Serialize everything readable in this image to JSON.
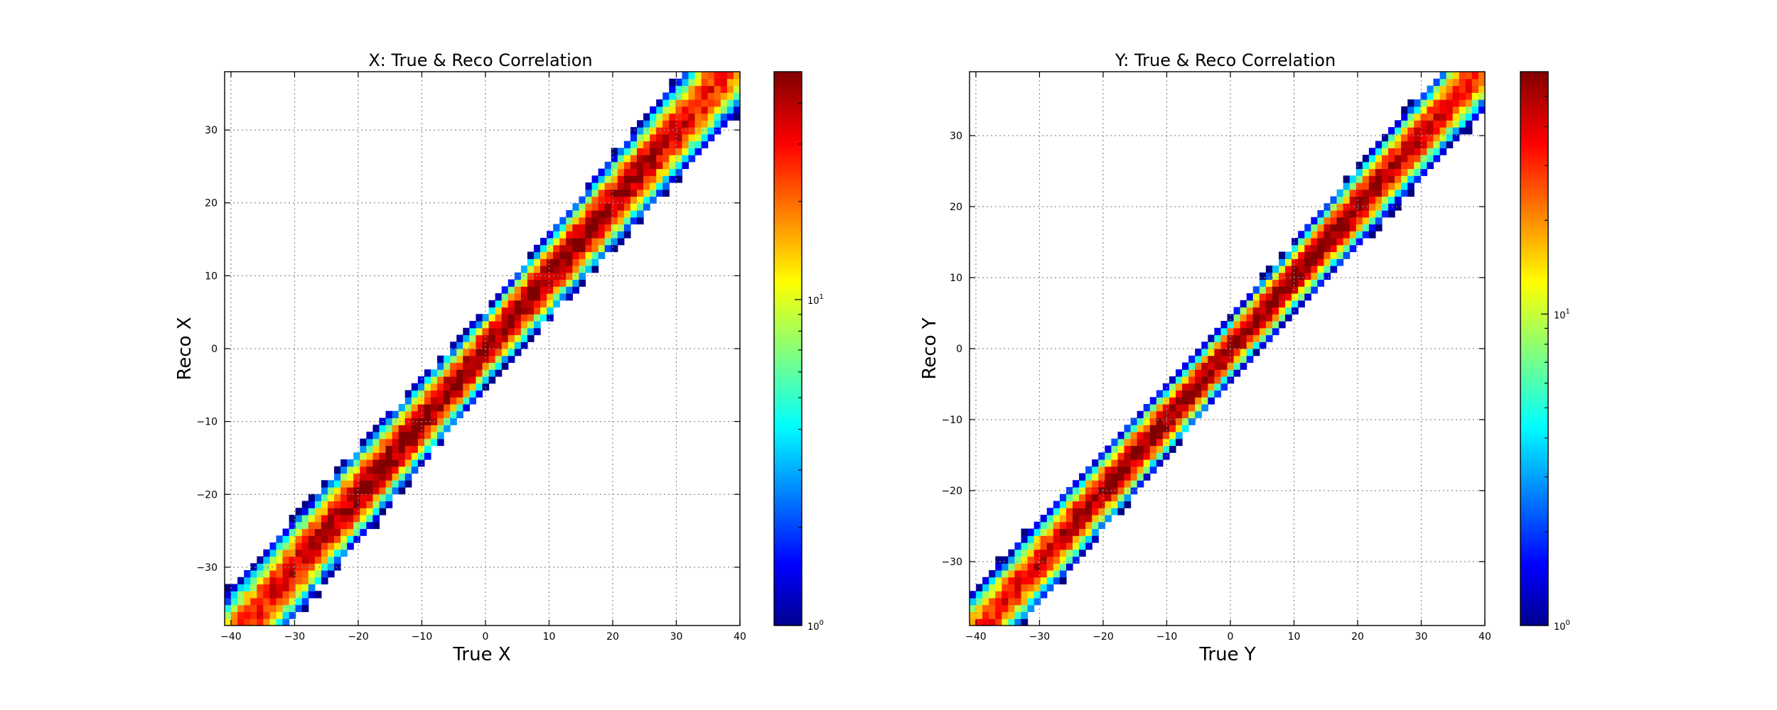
{
  "chart_data": [
    {
      "type": "heatmap",
      "title": "X: True & Reco Correlation",
      "xlabel": "True X",
      "ylabel": "Reco X",
      "xlim": [
        -41,
        40
      ],
      "ylim": [
        -38,
        38
      ],
      "xticks": [
        -40,
        -30,
        -20,
        -10,
        0,
        10,
        20,
        30,
        40
      ],
      "yticks": [
        -30,
        -20,
        -10,
        0,
        10,
        20,
        30
      ],
      "grid": true,
      "bins": 80,
      "band_width": 1.9,
      "peak_counts": 50,
      "colorscale": "jet",
      "colorbar": {
        "scale": "log",
        "range": [
          1,
          50
        ],
        "ticks": [
          1,
          10
        ]
      }
    },
    {
      "type": "heatmap",
      "title": "Y: True & Reco Correlation",
      "xlabel": "True Y",
      "ylabel": "Reco Y",
      "xlim": [
        -41,
        40
      ],
      "ylim": [
        -39,
        39
      ],
      "xticks": [
        -40,
        -30,
        -20,
        -10,
        0,
        10,
        20,
        30,
        40
      ],
      "yticks": [
        -30,
        -20,
        -10,
        0,
        10,
        20,
        30
      ],
      "grid": true,
      "bins": 80,
      "band_width": 1.6,
      "peak_counts": 60,
      "colorscale": "jet",
      "colorbar": {
        "scale": "log",
        "range": [
          1,
          60
        ],
        "ticks": [
          1,
          10
        ]
      }
    }
  ]
}
